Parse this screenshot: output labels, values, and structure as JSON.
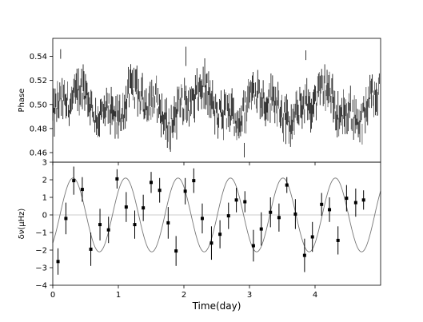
{
  "chart_data": [
    {
      "type": "scatter",
      "panel": "top",
      "ylabel": "Phase",
      "xlim": [
        0,
        5.0
      ],
      "ylim": [
        0.452,
        0.555
      ],
      "yticks": [
        0.46,
        0.48,
        0.5,
        0.52,
        0.54
      ],
      "ytick_labels": [
        "0.46",
        "0.48",
        "0.50",
        "0.52",
        "0.54"
      ],
      "xticks": [
        0,
        1,
        2,
        3,
        4
      ],
      "show_xtick_labels": false,
      "grid": false,
      "series": [
        {
          "style": "errorbar-dense",
          "color": "#222222",
          "model": {
            "mean": 0.499,
            "amp1": 0.011,
            "period_day": 0.93,
            "phase_day": 0.15,
            "amp2": 0.006,
            "period2_day": 0.37
          },
          "points": {
            "x_start": 0.0,
            "x_end": 4.98,
            "count": 420,
            "scatter": 0.012,
            "err_min": 0.004,
            "err_max": 0.013
          },
          "outliers": [
            {
              "x": 0.12,
              "y": 0.542,
              "err": 0.004
            },
            {
              "x": 3.86,
              "y": 0.541,
              "err": 0.004
            },
            {
              "x": 2.03,
              "y": 0.54,
              "err": 0.008
            },
            {
              "x": 2.92,
              "y": 0.462,
              "err": 0.006
            }
          ]
        }
      ]
    },
    {
      "type": "scatter",
      "panel": "bottom",
      "xlabel": "Time(day)",
      "ylabel": "δν(μHz)",
      "xlim": [
        0,
        5.0
      ],
      "ylim": [
        -4,
        3
      ],
      "yticks": [
        -4,
        -3,
        -2,
        -1,
        0,
        1,
        2,
        3
      ],
      "ytick_labels": [
        "−4",
        "−3",
        "−2",
        "−1",
        "0",
        "1",
        "2",
        "3"
      ],
      "xticks": [
        0,
        1,
        2,
        3,
        4
      ],
      "xtick_labels": [
        "0",
        "1",
        "2",
        "3",
        "4"
      ],
      "zero_line": true,
      "grid": false,
      "fit_curve": {
        "amplitude": 2.1,
        "period_day": 0.8,
        "phase_day": 0.11,
        "x_start": 0.0,
        "x_end": 5.0,
        "color": "#777777"
      },
      "series": [
        {
          "style": "square-errorbar",
          "color": "#000000",
          "x": [
            0.08,
            0.2,
            0.32,
            0.45,
            0.58,
            0.72,
            0.85,
            0.98,
            1.12,
            1.25,
            1.38,
            1.5,
            1.63,
            1.76,
            1.88,
            2.02,
            2.15,
            2.28,
            2.42,
            2.55,
            2.68,
            2.8,
            2.93,
            3.06,
            3.18,
            3.32,
            3.45,
            3.57,
            3.7,
            3.84,
            3.96,
            4.1,
            4.22,
            4.35,
            4.48,
            4.62,
            4.74
          ],
          "y": [
            -2.65,
            -0.2,
            1.95,
            1.45,
            -1.95,
            -0.55,
            -0.85,
            2.05,
            0.45,
            -0.55,
            0.4,
            1.85,
            1.4,
            -0.45,
            -2.05,
            1.35,
            1.95,
            -0.2,
            -1.6,
            -1.1,
            -0.05,
            0.85,
            0.75,
            -1.75,
            -0.8,
            0.15,
            -0.15,
            1.7,
            0.05,
            -2.3,
            -1.25,
            0.6,
            0.3,
            -1.45,
            0.95,
            0.7,
            0.85
          ],
          "err": [
            0.75,
            0.9,
            0.8,
            0.7,
            0.95,
            0.9,
            0.75,
            0.55,
            0.85,
            0.8,
            0.75,
            0.6,
            0.7,
            0.9,
            0.85,
            0.75,
            0.7,
            0.85,
            0.95,
            0.8,
            0.75,
            0.7,
            0.6,
            0.9,
            0.95,
            0.85,
            0.8,
            0.45,
            0.85,
            0.95,
            0.85,
            0.65,
            0.7,
            0.8,
            0.75,
            0.8,
            0.55
          ]
        }
      ]
    }
  ]
}
